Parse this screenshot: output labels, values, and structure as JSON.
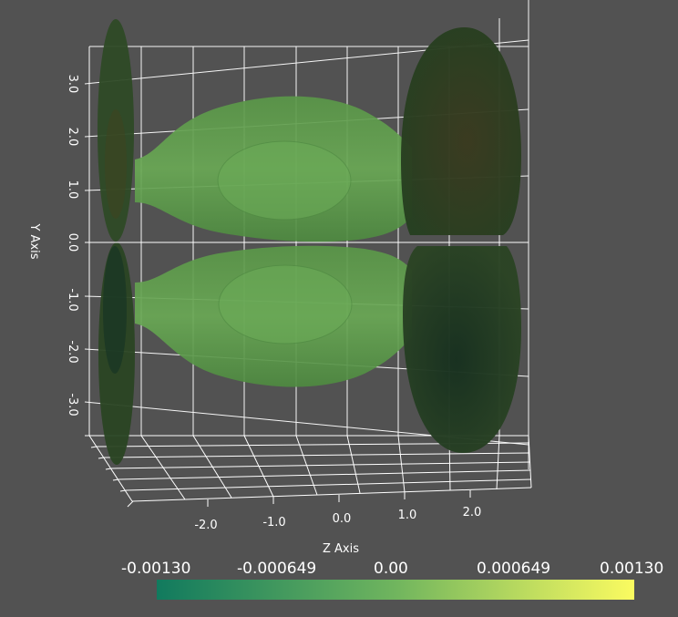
{
  "axes": {
    "y_title": "Y Axis",
    "z_title": "Z Axis",
    "y_ticks": [
      "3.0",
      "2.0",
      "1.0",
      "0.0",
      "-1.0",
      "-2.0",
      "-3.0"
    ],
    "z_ticks": [
      "-2.0",
      "-1.0",
      "0.0",
      "1.0",
      "2.0"
    ]
  },
  "colorbar": {
    "labels": [
      "-0.00130",
      "-0.000649",
      "0.00",
      "0.000649",
      "0.00130"
    ],
    "min_color": "#117a5e",
    "mid_color": "#70b55e",
    "max_color": "#fbfb60"
  },
  "colors": {
    "background": "#525252",
    "grid": "#ffffff",
    "lobe_green": "#5e9e4c",
    "dark_cap": "#25401f"
  }
}
